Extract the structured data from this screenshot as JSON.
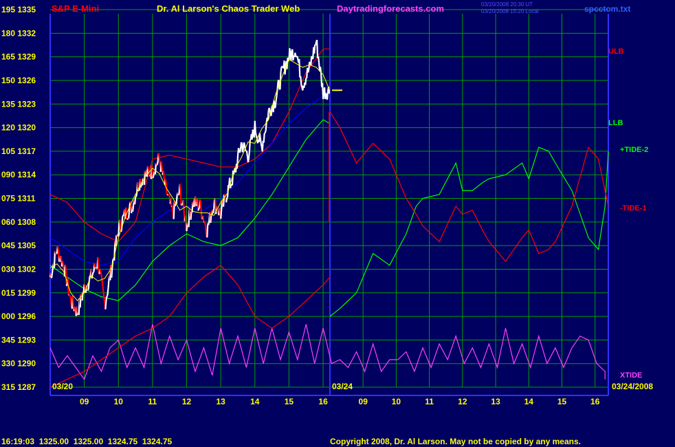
{
  "header": {
    "symbol": "S&P E-Mini",
    "title": "Dr. Al Larson's Chaos Trader Web",
    "website": "Daytradingforecasts.com",
    "timestamp_line1": "03/20/2008 20:30 UT",
    "timestamp_line2": "03/20/2008 15:20 Local",
    "filename": "spcctom.txt"
  },
  "footer": {
    "quote": "16:19:03  1325.00  1325.00  1324.75  1324.75",
    "copyright": "Copyright 2008, Dr. Al Larson. May not be copied by any means."
  },
  "colors": {
    "background": "#000060",
    "grid": "#00A000",
    "axis": "#3030FF",
    "price": "#FFFFFF",
    "price_down": "#FF0000",
    "ulb": "#FF0000",
    "llb": "#00FF00",
    "xtide": "#FF40FF",
    "tide1": "#FF0000",
    "tide2": "#00FF00",
    "fast_avg": "#FFFF00",
    "slow_avg": "#0000FF",
    "label_yellow": "#FFFF00",
    "label_magenta": "#FF40FF"
  },
  "chart_data": {
    "type": "line",
    "y_labels": [
      {
        "left": "195",
        "price": 1335
      },
      {
        "left": "180",
        "price": 1332
      },
      {
        "left": "165",
        "price": 1329
      },
      {
        "left": "150",
        "price": 1326
      },
      {
        "left": "135",
        "price": 1323
      },
      {
        "left": "120",
        "price": 1320
      },
      {
        "left": "105",
        "price": 1317
      },
      {
        "left": "090",
        "price": 1314
      },
      {
        "left": "075",
        "price": 1311
      },
      {
        "left": "060",
        "price": 1308
      },
      {
        "left": "045",
        "price": 1305
      },
      {
        "left": "030",
        "price": 1302
      },
      {
        "left": "015",
        "price": 1299
      },
      {
        "left": "000",
        "price": 1296
      },
      {
        "left": "345",
        "price": 1293
      },
      {
        "left": "330",
        "price": 1290
      },
      {
        "left": "315",
        "price": 1287
      }
    ],
    "ylim": [
      1287,
      1335
    ],
    "x_ticks_day1": [
      "09",
      "10",
      "11",
      "12",
      "13",
      "14",
      "15",
      "16"
    ],
    "x_ticks_day2": [
      "09",
      "10",
      "11",
      "12",
      "13",
      "14",
      "15",
      "16"
    ],
    "x_hours": [
      8.0,
      16.2
    ],
    "date_label_1": "03/20",
    "date_label_2": "03/24",
    "date_label_end": "03/24/2008",
    "right_labels": {
      "ulb": "ULB",
      "llb": "LLB",
      "tide2": "+TIDE-2",
      "tide1": "-TIDE-1",
      "xtide": "XTIDE"
    },
    "grid": true,
    "series": [
      {
        "name": "ULB",
        "x": [
          8.0,
          8.5,
          9.0,
          9.5,
          10.0,
          10.5,
          11.0,
          11.5,
          12.0,
          12.5,
          13.0,
          13.5,
          14.0,
          14.5,
          15.0,
          15.5,
          16.0,
          16.2
        ],
        "y": [
          1311.5,
          1310.5,
          1308,
          1306.5,
          1305.5,
          1308,
          1316,
          1316.5,
          1316,
          1315.5,
          1315,
          1315,
          1316,
          1318,
          1322,
          1327,
          1330,
          1330
        ]
      },
      {
        "name": "LLB",
        "x": [
          8.0,
          8.5,
          9.0,
          9.5,
          10.0,
          10.5,
          11.0,
          11.5,
          12.0,
          12.5,
          13.0,
          13.5,
          14.0,
          14.5,
          15.0,
          15.5,
          16.0,
          16.2
        ],
        "y": [
          1302.5,
          1301,
          1299.5,
          1298.5,
          1298,
          1300,
          1303,
          1305,
          1306.5,
          1305.5,
          1305,
          1306,
          1308.5,
          1311.5,
          1315,
          1318.5,
          1321,
          1320.5
        ]
      },
      {
        "name": "slow",
        "x": [
          8.0,
          8.5,
          9.0,
          9.5,
          10.0,
          10.5,
          11.0,
          11.5,
          12.0,
          12.5,
          13.0,
          13.5,
          14.0,
          14.5,
          15.0,
          15.5,
          16.0,
          16.2
        ],
        "y": [
          1306,
          1304.5,
          1303,
          1302.5,
          1303,
          1306,
          1308,
          1309.5,
          1310,
          1309.5,
          1311,
          1313,
          1315.5,
          1318,
          1320.5,
          1322.5,
          1324,
          1324
        ]
      },
      {
        "name": "xtide",
        "x": [
          8.0,
          8.25,
          8.5,
          8.75,
          9.0,
          9.25,
          9.5,
          9.75,
          10.0,
          10.25,
          10.5,
          10.75,
          11.0,
          11.25,
          11.5,
          11.75,
          12.0,
          12.25,
          12.5,
          12.75,
          13.0,
          13.25,
          13.5,
          13.75,
          14.0,
          14.25,
          14.5,
          14.75,
          15.0,
          15.25,
          15.5,
          15.75,
          16.0,
          16.25,
          16.5,
          16.75,
          17.0,
          17.25,
          17.5,
          17.75,
          18.0,
          18.25,
          18.5,
          18.75,
          19.0,
          19.25,
          19.5,
          19.75,
          20.0,
          20.25,
          20.5,
          20.75,
          21.0,
          21.25,
          21.5,
          21.75,
          22.0,
          22.25,
          22.5,
          22.75,
          23.0,
          23.25,
          23.5,
          23.75,
          24.0,
          24.25,
          24.5,
          24.5
        ],
        "y": [
          1292,
          1289.5,
          1291,
          1289.5,
          1288,
          1291,
          1289,
          1292,
          1293,
          1289.5,
          1292,
          1289.5,
          1295,
          1290,
          1293.5,
          1290.5,
          1293,
          1289,
          1292,
          1288.5,
          1294.5,
          1290,
          1293.5,
          1289.5,
          1294.5,
          1290,
          1294.5,
          1290.5,
          1294,
          1290.5,
          1295,
          1290,
          1294.5,
          1290,
          1290.5,
          1289.5,
          1291.5,
          1289,
          1292.5,
          1289,
          1290.5,
          1290.5,
          1291.5,
          1289,
          1292,
          1289.5,
          1292.5,
          1290.5,
          1293.5,
          1290,
          1292,
          1289.5,
          1292.5,
          1289.5,
          1294.5,
          1290,
          1292.5,
          1289.5,
          1293.5,
          1290,
          1292,
          1289.5,
          1292,
          1293.5,
          1293,
          1290,
          1289,
          1288
        ]
      },
      {
        "name": "-TIDE-1",
        "x": [
          8.0,
          8.5,
          9.0,
          9.5,
          10.0,
          10.5,
          11.0,
          11.5,
          12.0,
          12.5,
          13.0,
          13.5,
          14.0,
          14.5,
          15.0,
          15.5,
          16.0,
          16.2
        ],
        "y": [
          1287,
          1288,
          1289,
          1290.5,
          1292,
          1293.5,
          1294.5,
          1296,
          1299,
          1301,
          1302.5,
          1300,
          1296,
          1294.5,
          1296,
          1298,
          1300,
          1301
        ]
      },
      {
        "name": "+TIDE-2",
        "x": [
          16.2,
          16.5,
          17.0,
          17.5,
          18.0,
          18.5,
          18.8,
          19.0,
          19.5,
          20.0,
          20.2,
          20.5,
          20.8,
          21.0,
          21.5,
          22.0,
          22.2,
          22.5,
          22.8,
          23.0,
          23.5,
          24.0,
          24.3,
          24.5,
          24.6
        ],
        "y": [
          1296,
          1297,
          1299,
          1304,
          1302.5,
          1306.5,
          1310,
          1311,
          1311.5,
          1315.5,
          1312,
          1312,
          1313,
          1313.5,
          1314,
          1315.5,
          1313.5,
          1317.5,
          1317,
          1315.5,
          1312,
          1306,
          1304.5,
          1310,
          1317
        ]
      },
      {
        "name": "-TIDE-1 fwd",
        "x": [
          16.2,
          16.5,
          17.0,
          17.5,
          18.0,
          18.5,
          18.8,
          19.0,
          19.5,
          20.0,
          20.2,
          20.5,
          20.8,
          21.0,
          21.5,
          22.0,
          22.2,
          22.5,
          22.8,
          23.0,
          23.5,
          24.0,
          24.3,
          24.5,
          24.6
        ],
        "y": [
          1322,
          1320,
          1315.5,
          1318,
          1316,
          1311,
          1309,
          1307.5,
          1305.5,
          1310,
          1309,
          1309.5,
          1307,
          1305.5,
          1303,
          1306,
          1307,
          1304,
          1304.5,
          1305.5,
          1310,
          1317.5,
          1316,
          1312,
          1310
        ]
      }
    ],
    "price": {
      "x": [
        8.0,
        8.2,
        8.4,
        8.6,
        8.8,
        9.0,
        9.2,
        9.4,
        9.6,
        9.8,
        10.0,
        10.2,
        10.4,
        10.6,
        10.8,
        11.0,
        11.2,
        11.4,
        11.6,
        11.8,
        12.0,
        12.2,
        12.4,
        12.6,
        12.8,
        13.0,
        13.2,
        13.4,
        13.6,
        13.8,
        14.0,
        14.2,
        14.4,
        14.6,
        14.8,
        15.0,
        15.2,
        15.4,
        15.6,
        15.8,
        16.0,
        16.2
      ],
      "y": [
        1301,
        1304.5,
        1302.5,
        1298,
        1296.5,
        1299.5,
        1301,
        1303,
        1297.5,
        1302,
        1307,
        1309,
        1310,
        1313,
        1314,
        1314.5,
        1316,
        1312,
        1309,
        1312,
        1307.5,
        1310.5,
        1310,
        1307,
        1310.5,
        1309,
        1312,
        1314,
        1318,
        1316.5,
        1320,
        1317.5,
        1322,
        1323.5,
        1327,
        1329,
        1330,
        1325.5,
        1327.5,
        1331,
        1324.5,
        1324.75
      ]
    },
    "last_price": 1324.75
  }
}
